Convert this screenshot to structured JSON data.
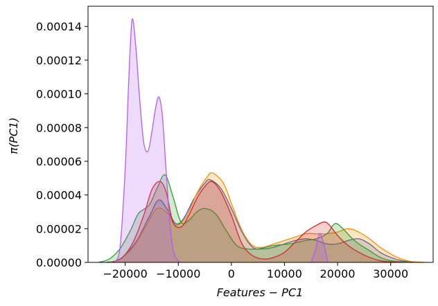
{
  "chart_data": {
    "type": "area",
    "title": "",
    "xlabel": "Features − PC1",
    "ylabel": "π(PC1)",
    "xlim": [
      -27000,
      38000
    ],
    "ylim": [
      0,
      0.000152
    ],
    "grid": false,
    "legend": "none",
    "xticks": [
      {
        "value": -20000,
        "label": "−20000"
      },
      {
        "value": -10000,
        "label": "−10000"
      },
      {
        "value": 0,
        "label": "0"
      },
      {
        "value": 10000,
        "label": "10000"
      },
      {
        "value": 20000,
        "label": "20000"
      },
      {
        "value": 30000,
        "label": "30000"
      }
    ],
    "yticks": [
      {
        "value": 0,
        "label": "0.00000"
      },
      {
        "value": 2e-05,
        "label": "0.00002"
      },
      {
        "value": 4e-05,
        "label": "0.00004"
      },
      {
        "value": 6e-05,
        "label": "0.00006"
      },
      {
        "value": 8e-05,
        "label": "0.00008"
      },
      {
        "value": 0.0001,
        "label": "0.00010"
      },
      {
        "value": 0.00012,
        "label": "0.00012"
      },
      {
        "value": 0.00014,
        "label": "0.00014"
      }
    ],
    "series": [
      {
        "color": "#3b5bb5",
        "x": [
          -23500,
          -21000,
          -18000,
          -15500,
          -13700,
          -12000,
          -10500,
          -9000,
          -7000,
          -5000,
          -4000,
          -2000,
          0,
          2000,
          4000,
          6000,
          8000,
          10000,
          12000,
          14000,
          16000,
          18000,
          20000,
          22000,
          24000,
          26000,
          28000,
          30000,
          32000,
          34000,
          36000
        ],
        "y": [
          0,
          2e-06,
          1.2e-05,
          2.7e-05,
          3.7e-05,
          3.1e-05,
          2.3e-05,
          2.6e-05,
          3.8e-05,
          4.7e-05,
          4.9e-05,
          4.4e-05,
          3.2e-05,
          1.8e-05,
          9e-06,
          8e-06,
          9e-06,
          1.1e-05,
          1.3e-05,
          1.4e-05,
          1.3e-05,
          1.1e-05,
          1.1e-05,
          1.3e-05,
          1.4e-05,
          1.1e-05,
          6e-06,
          3e-06,
          1e-06,
          3e-07,
          0
        ]
      },
      {
        "color": "#ff8c00",
        "x": [
          -23000,
          -21000,
          -18500,
          -16000,
          -14000,
          -12000,
          -10500,
          -8500,
          -6500,
          -4500,
          -3500,
          -1500,
          0,
          2000,
          4000,
          6000,
          8000,
          10000,
          12000,
          14000,
          16000,
          18000,
          20000,
          22000,
          24000,
          26000,
          28000,
          30000,
          32000,
          34000,
          36500
        ],
        "y": [
          0,
          2e-06,
          9e-06,
          2.2e-05,
          3.2e-05,
          2.9e-05,
          2.2e-05,
          2.7e-05,
          4.1e-05,
          5.1e-05,
          5.3e-05,
          4.7e-05,
          3.5e-05,
          1.9e-05,
          1e-05,
          9e-06,
          1.1e-05,
          1.3e-05,
          1.5e-05,
          1.7e-05,
          1.7e-05,
          1.7e-05,
          1.8e-05,
          2e-05,
          1.8e-05,
          1.4e-05,
          9e-06,
          5e-06,
          2e-06,
          5e-07,
          0
        ]
      },
      {
        "color": "#2ca02c",
        "x": [
          -25000,
          -23000,
          -21000,
          -19000,
          -17500,
          -15500,
          -14000,
          -12500,
          -11000,
          -9500,
          -8000,
          -6500,
          -5000,
          -3000,
          -1000,
          1000,
          3000,
          5000,
          8000,
          11000,
          14000,
          16000,
          18000,
          19500,
          21000,
          22500,
          24000,
          26000,
          28000,
          30000,
          32000,
          34000
        ],
        "y": [
          0,
          2e-06,
          8e-06,
          1.9e-05,
          2.9e-05,
          3.4e-05,
          4.4e-05,
          5.2e-05,
          3.9e-05,
          2.4e-05,
          2.5e-05,
          3e-05,
          3.2e-05,
          2.9e-05,
          1.9e-05,
          1e-05,
          8e-06,
          8e-06,
          1e-05,
          1.1e-05,
          1.3e-05,
          1.4e-05,
          1.7e-05,
          2.3e-05,
          2e-05,
          1.5e-05,
          1.1e-05,
          7e-06,
          3e-06,
          1e-06,
          3e-07,
          0
        ]
      },
      {
        "color": "#d62728",
        "x": [
          -22500,
          -20500,
          -18500,
          -16500,
          -15000,
          -13500,
          -12300,
          -11000,
          -9500,
          -8000,
          -6500,
          -5000,
          -3700,
          -2000,
          0,
          2000,
          4000,
          6000,
          8000,
          10000,
          12000,
          14000,
          16000,
          17500,
          18500,
          20000,
          22000,
          24000,
          26000,
          28000,
          30000,
          32000
        ],
        "y": [
          0,
          3e-06,
          1.2e-05,
          2.8e-05,
          4.3e-05,
          4.8e-05,
          4.2e-05,
          2.4e-05,
          2.1e-05,
          2.8e-05,
          3.8e-05,
          4.5e-05,
          4.8e-05,
          4.2e-05,
          2.8e-05,
          1.1e-05,
          4e-06,
          2e-06,
          3e-06,
          6e-06,
          1.2e-05,
          1.8e-05,
          2.2e-05,
          2.4e-05,
          2.2e-05,
          1.6e-05,
          1e-05,
          6e-06,
          3e-06,
          1e-06,
          3e-07,
          0
        ]
      },
      {
        "color": "#b25cf0",
        "x": [
          -22000,
          -21000,
          -20000,
          -19300,
          -18700,
          -18000,
          -17300,
          -16500,
          -15700,
          -15000,
          -14200,
          -13600,
          -13000,
          -12300,
          -11600,
          -11000,
          -10300,
          -9500,
          15000,
          15800,
          16600,
          17300,
          18200
        ],
        "y": [
          0,
          8e-06,
          5.5e-05,
          0.00011,
          0.000144,
          0.000128,
          9.8e-05,
          7.1e-05,
          6.6e-05,
          7.7e-05,
          9.3e-05,
          9.8e-05,
          8.7e-05,
          5.5e-05,
          2.4e-05,
          8e-06,
          2e-06,
          0,
          0,
          7e-06,
          1.7e-05,
          1.2e-05,
          0
        ]
      }
    ]
  }
}
